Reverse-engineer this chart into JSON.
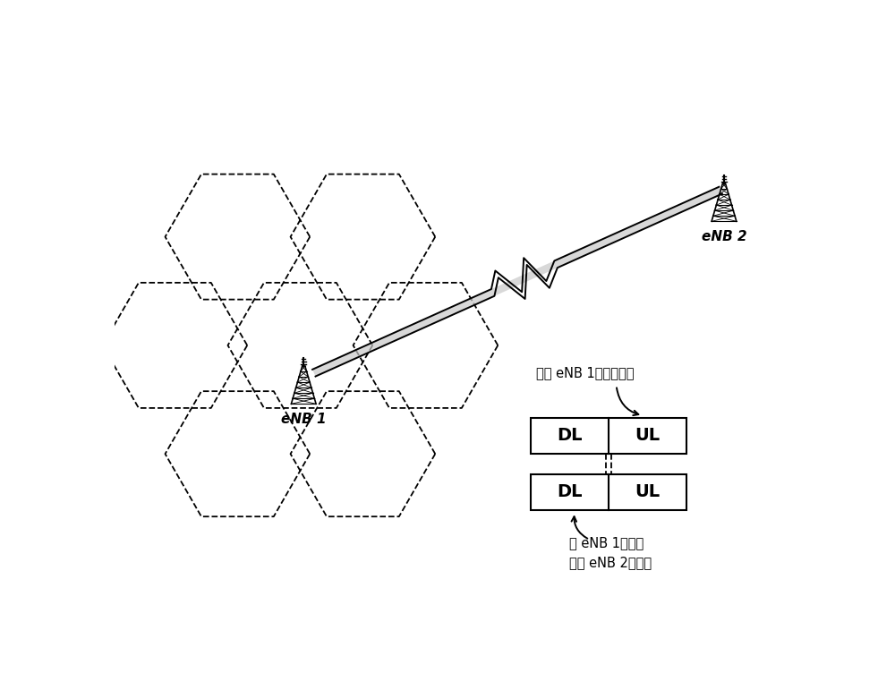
{
  "bg_color": "#ffffff",
  "enb1_label": "eNB 1",
  "enb2_label": "eNB 2",
  "label1_text": "要在 eNB 1接收的子帧",
  "label2_line1": "在 eNB 1接收的",
  "label2_line2": "来自 eNB 2的子帧"
}
